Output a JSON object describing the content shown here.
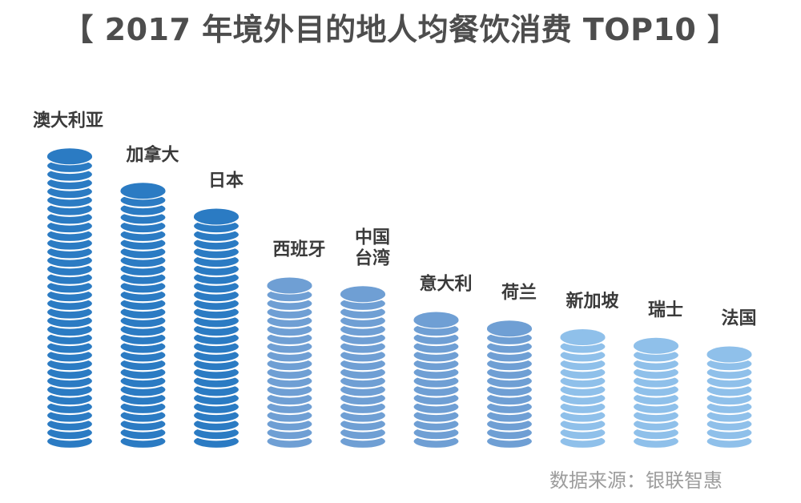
{
  "title": "【 2017 年境外目的地人均餐饮消费 TOP10 】",
  "source": "数据来源：银联智惠",
  "colors": {
    "dark": "#2b7bc3",
    "medium": "#6f9fd4",
    "light": "#8fc0ea",
    "stripe": "#ffffff"
  },
  "chart_data": {
    "type": "bar",
    "title": "【 2017 年境外目的地人均餐饮消费 TOP10 】",
    "xlabel": "",
    "ylabel": "",
    "axes_shown": false,
    "note": "Pictorial stacked-coin bars; no numeric scale printed. Values are relative heights measured in coin units.",
    "categories": [
      "澳大利亚",
      "加拿大",
      "日本",
      "西班牙",
      "中国台湾",
      "意大利",
      "荷兰",
      "新加坡",
      "瑞士",
      "法国"
    ],
    "label_lines": [
      [
        "澳大利亚"
      ],
      [
        "加拿大"
      ],
      [
        "日本"
      ],
      [
        "西班牙"
      ],
      [
        "中国",
        "台湾"
      ],
      [
        "意大利"
      ],
      [
        "荷兰"
      ],
      [
        "新加坡"
      ],
      [
        "瑞士"
      ],
      [
        "法国"
      ]
    ],
    "values": [
      34,
      30,
      27,
      19,
      18,
      15,
      14,
      13,
      12,
      11
    ],
    "tone": [
      "dark",
      "dark",
      "dark",
      "medium",
      "medium",
      "medium",
      "medium",
      "light",
      "light",
      "light"
    ]
  }
}
